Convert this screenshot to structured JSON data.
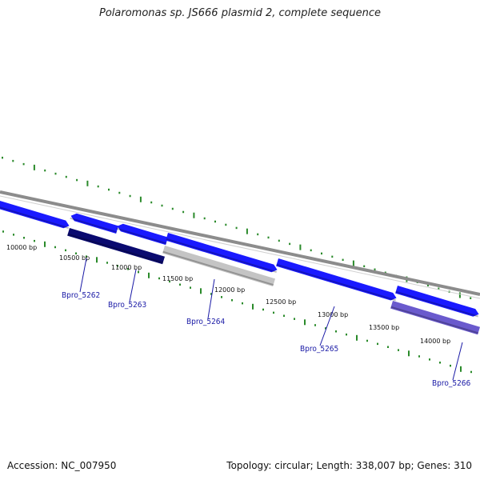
{
  "title": "Polaromonas sp. JS666 plasmid 2, complete sequence",
  "footer": {
    "accession": "Accession: NC_007950",
    "summary": "Topology: circular; Length: 338,007 bp; Genes: 310"
  },
  "colors": {
    "backbone": "#8c8c8c",
    "gene_forward": "#1a1aff",
    "tick": "#2a8a2a",
    "label": "#1a1aa6"
  },
  "chart_data": {
    "type": "genome-map",
    "axis_unit": "bp",
    "scale_labels": [
      {
        "bp": 10000,
        "text": "10000 bp"
      },
      {
        "bp": 10500,
        "text": "10500 bp"
      },
      {
        "bp": 11000,
        "text": "11000 bp"
      },
      {
        "bp": 11500,
        "text": "11500 bp"
      },
      {
        "bp": 12000,
        "text": "12000 bp"
      },
      {
        "bp": 12500,
        "text": "12500 bp"
      },
      {
        "bp": 13000,
        "text": "13000 bp"
      },
      {
        "bp": 13500,
        "text": "13500 bp"
      },
      {
        "bp": 14000,
        "text": "14000 bp"
      }
    ],
    "genes": [
      {
        "label": "Bpro_5262"
      },
      {
        "label": "Bpro_5263"
      },
      {
        "label": "Bpro_5264"
      },
      {
        "label": "Bpro_5265"
      },
      {
        "label": "Bpro_5266"
      }
    ]
  }
}
